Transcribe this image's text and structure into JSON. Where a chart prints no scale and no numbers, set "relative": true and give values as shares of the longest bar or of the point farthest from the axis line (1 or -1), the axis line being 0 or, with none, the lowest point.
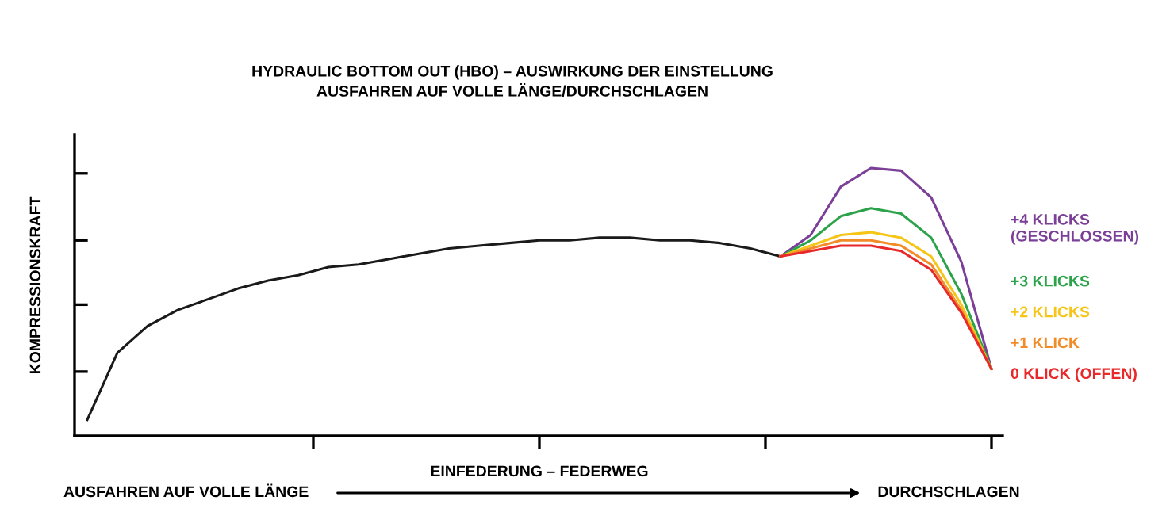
{
  "chart_data": {
    "type": "line",
    "relative": true,
    "title": "HYDRAULIC BOTTOM OUT (HBO) – AUSWIRKUNG DER EINSTELLUNG\nAUSFAHREN AUF VOLLE LÄNGE/DURCHSCHLAGEN",
    "xlabel": "EINFEDERUNG – FEDERWEG",
    "ylabel": "KOMPRESSIONSKRAFT",
    "annotations": [
      "AUSFAHREN AUF VOLLE LÄNGE",
      "DURCHSCHLAGEN"
    ],
    "categories": [
      null,
      null,
      null,
      null,
      null,
      null,
      null,
      null,
      null,
      null,
      null,
      null,
      null,
      null,
      null,
      null,
      null,
      null,
      null,
      null,
      null,
      null,
      null,
      null,
      null,
      null,
      null,
      null,
      null,
      null,
      null
    ],
    "series": [
      {
        "color": "#1a1a1a",
        "values": [
          0.06,
          0.31,
          0.41,
          0.47,
          0.51,
          0.55,
          0.58,
          0.6,
          0.63,
          0.64,
          0.66,
          0.68,
          0.7,
          0.71,
          0.72,
          0.73,
          0.73,
          0.74,
          0.74,
          0.73,
          0.73,
          0.72,
          0.7,
          0.67,
          null,
          null,
          null,
          null,
          null,
          null,
          null
        ]
      },
      {
        "name": "+4 KLICKS\n(GESCHLOSSEN)",
        "color": "#7b3f98",
        "values": [
          null,
          null,
          null,
          null,
          null,
          null,
          null,
          null,
          null,
          null,
          null,
          null,
          null,
          null,
          null,
          null,
          null,
          null,
          null,
          null,
          null,
          null,
          null,
          0.67,
          0.75,
          0.93,
          1.0,
          0.99,
          0.89,
          0.65,
          0.25
        ]
      },
      {
        "name": "+3 KLICKS",
        "color": "#2ca24a",
        "values": [
          null,
          null,
          null,
          null,
          null,
          null,
          null,
          null,
          null,
          null,
          null,
          null,
          null,
          null,
          null,
          null,
          null,
          null,
          null,
          null,
          null,
          null,
          null,
          0.67,
          0.73,
          0.82,
          0.85,
          0.83,
          0.74,
          0.53,
          0.25
        ]
      },
      {
        "name": "+2 KLICKS",
        "color": "#f5c518",
        "values": [
          null,
          null,
          null,
          null,
          null,
          null,
          null,
          null,
          null,
          null,
          null,
          null,
          null,
          null,
          null,
          null,
          null,
          null,
          null,
          null,
          null,
          null,
          null,
          0.67,
          0.71,
          0.75,
          0.76,
          0.74,
          0.67,
          0.49,
          0.25
        ]
      },
      {
        "name": "+1 KLICK",
        "color": "#f28c28",
        "values": [
          null,
          null,
          null,
          null,
          null,
          null,
          null,
          null,
          null,
          null,
          null,
          null,
          null,
          null,
          null,
          null,
          null,
          null,
          null,
          null,
          null,
          null,
          null,
          0.67,
          0.7,
          0.73,
          0.73,
          0.71,
          0.64,
          0.47,
          0.25
        ]
      },
      {
        "name": "0 KLICK (OFFEN)",
        "color": "#e8292b",
        "values": [
          null,
          null,
          null,
          null,
          null,
          null,
          null,
          null,
          null,
          null,
          null,
          null,
          null,
          null,
          null,
          null,
          null,
          null,
          null,
          null,
          null,
          null,
          null,
          0.67,
          0.69,
          0.71,
          0.71,
          0.69,
          0.62,
          0.46,
          0.25
        ]
      }
    ],
    "tick_labels": false,
    "grid": false,
    "legend": false
  }
}
